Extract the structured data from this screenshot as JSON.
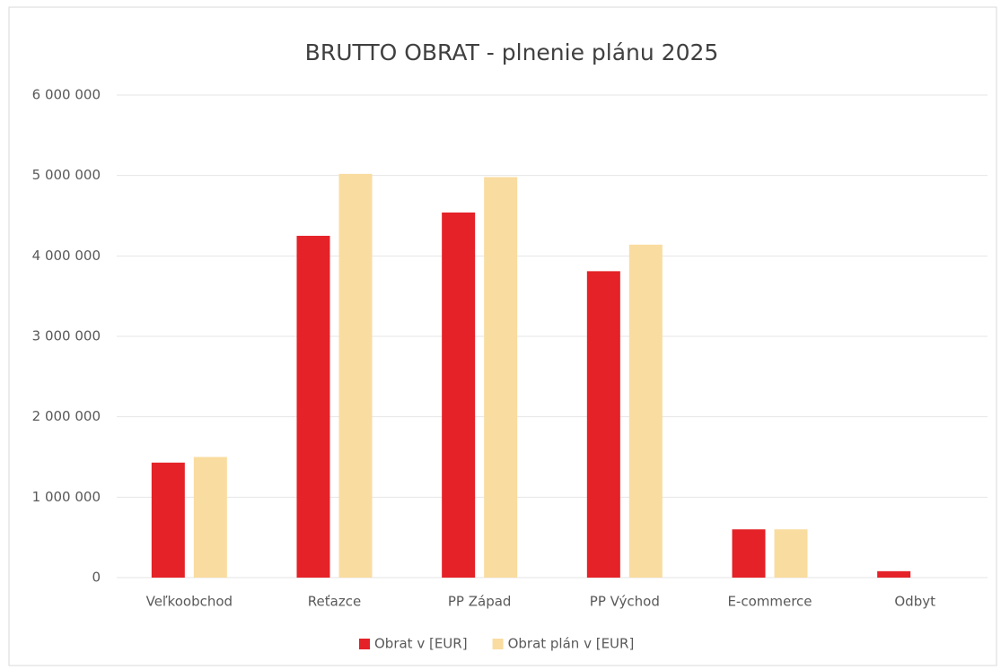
{
  "chart_data": {
    "type": "bar",
    "title": "BRUTTO OBRAT - plnenie plánu 2025",
    "categories": [
      "Veľkoobchod",
      "Reťazce",
      "PP Západ",
      "PP Východ",
      "E-commerce",
      "Odbyt"
    ],
    "series": [
      {
        "name": "Obrat v [EUR]",
        "color": "#e42228",
        "values": [
          1430000,
          4250000,
          4540000,
          3810000,
          600000,
          80000
        ]
      },
      {
        "name": "Obrat plán v [EUR]",
        "color": "#f9dca0",
        "values": [
          1500000,
          5020000,
          4980000,
          4140000,
          600000,
          0
        ]
      }
    ],
    "ylim": [
      0,
      6000000
    ],
    "yticks": [
      0,
      {
        "value": 1000000,
        "label": "1 000 000"
      },
      {
        "value": 2000000,
        "label": "2 000 000"
      },
      {
        "value": 3000000,
        "label": "3 000 000"
      },
      {
        "value": 4000000,
        "label": "4 000 000"
      },
      {
        "value": 5000000,
        "label": "5 000 000"
      },
      {
        "value": 6000000,
        "label": "6 000 000"
      }
    ],
    "grid": true,
    "legend": "bottom"
  }
}
